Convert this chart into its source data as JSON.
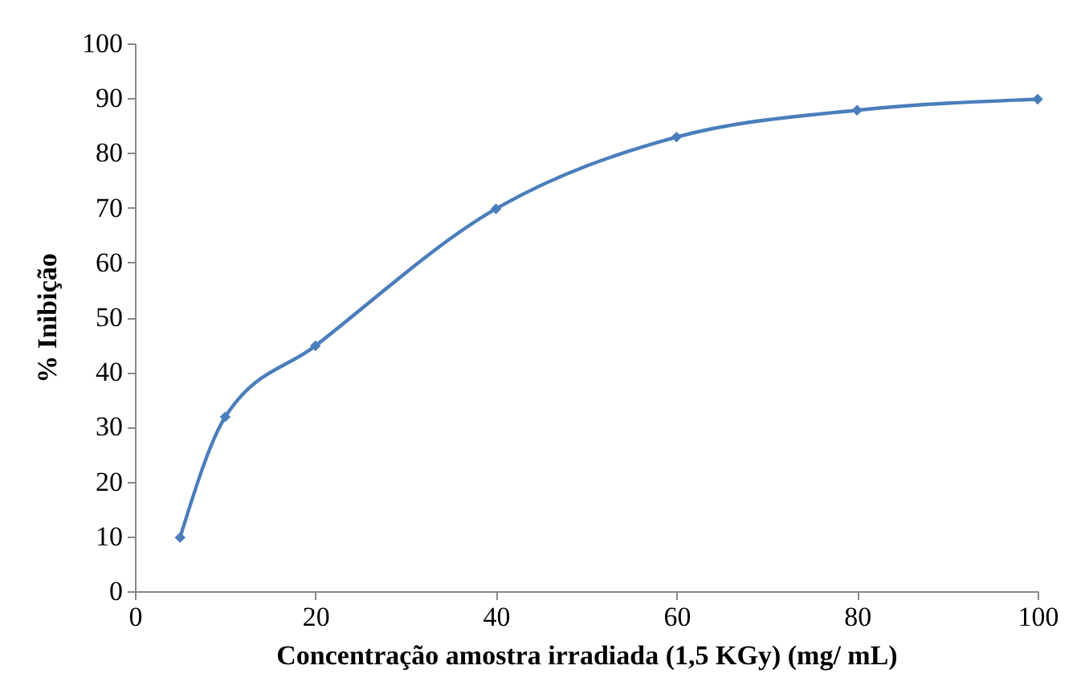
{
  "chart_data": {
    "type": "line",
    "xlabel": "Concentração amostra irradiada (1,5 KGy) (mg/ mL)",
    "ylabel": "% Inibição",
    "x": [
      5,
      10,
      20,
      40,
      60,
      80,
      100
    ],
    "series": [
      {
        "color": "#4a7ebb",
        "values": [
          9.8,
          31.8,
          44.8,
          69.8,
          82.9,
          87.8,
          89.8
        ]
      }
    ],
    "xlim": [
      0,
      100
    ],
    "xticks": [
      0,
      20,
      40,
      60,
      80,
      100
    ],
    "ylim": [
      0,
      100
    ],
    "yticks": [
      0,
      10,
      20,
      30,
      40,
      50,
      60,
      70,
      80,
      90,
      100
    ],
    "marker": "diamond",
    "line_style": "solid"
  }
}
